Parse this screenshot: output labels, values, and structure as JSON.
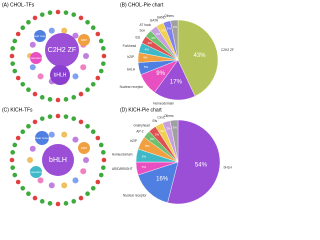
{
  "chart_data": [
    {
      "type": "pie",
      "title": "(B) CHOL-Pie chart",
      "categories": [
        "C2H2 ZF",
        "Homeodomain",
        "Nuclear receptor",
        "bHLH",
        "bZIP",
        "Forkhead",
        "Ets",
        "Sox",
        "AT hook",
        "GATA",
        "SAND",
        "Others"
      ],
      "values": [
        43,
        17,
        9,
        5,
        4,
        4,
        3,
        3,
        3,
        3,
        3,
        3
      ],
      "value_labels": [
        "43%",
        "17%",
        "9%",
        "5%",
        "4%",
        "4%",
        "3%",
        "3%",
        "3%",
        "3%",
        "3%",
        "3%"
      ],
      "colors": [
        "#b5c45a",
        "#9b4fd6",
        "#e84fc0",
        "#4f7fe0",
        "#f0a040",
        "#3fb8c8",
        "#e05050",
        "#70c070",
        "#c8a0e0",
        "#f0d050",
        "#8080f0",
        "#a0a0a0"
      ]
    },
    {
      "type": "pie",
      "title": "(D) KICH-Pie chart",
      "categories": [
        "bHLH",
        "Nuclear receptor",
        "ARID/BRIGHT",
        "Homeodomain",
        "bZIP",
        "AP-2",
        "Grainyhead",
        "Ets",
        "CxxC",
        "Others"
      ],
      "values": [
        54,
        16,
        5,
        5,
        5,
        3,
        3,
        3,
        3,
        3
      ],
      "value_labels": [
        "54%",
        "16%",
        "5%",
        "5%",
        "5%",
        "3%",
        "3%",
        "3%",
        "3%",
        "3%"
      ],
      "colors": [
        "#9b4fd6",
        "#4f7fe0",
        "#e84fc0",
        "#3fb8c8",
        "#f0a040",
        "#70c070",
        "#e05050",
        "#f0d050",
        "#c8a0e0",
        "#a0a0a0"
      ]
    }
  ],
  "networks": [
    {
      "title": "(A) CHOL-TFs",
      "nodes": [
        {
          "label": "C2H2 ZF"
        },
        {
          "label": "bHLH"
        },
        {
          "label": "Homeodomain"
        },
        {
          "label": "bZIP"
        },
        {
          "label": "Nuclear receptor"
        }
      ]
    },
    {
      "title": "(C) KICH-TFs",
      "nodes": [
        {
          "label": "bHLH"
        },
        {
          "label": "bZIP"
        },
        {
          "label": "Nuclear receptor"
        },
        {
          "label": "Homeodomain"
        }
      ]
    }
  ]
}
